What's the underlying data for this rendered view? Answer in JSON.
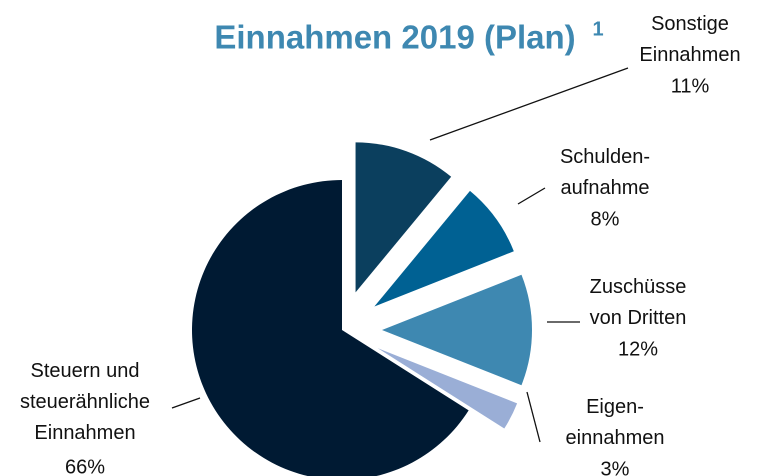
{
  "chart_data": {
    "type": "pie",
    "title": "Einnahmen 2019 (Plan)",
    "title_footnote": "1",
    "categories": [
      "Sonstige\nEinnahmen",
      "Schulden-\naufnahme",
      "Zuschüsse\nvon Dritten",
      "Eigen-\neinnahmen",
      "Steuern und\nsteuerähnliche\nEinnahmen"
    ],
    "values": [
      11,
      8,
      12,
      3,
      66
    ],
    "value_labels": [
      "11%",
      "8%",
      "12%",
      "3%",
      "66%"
    ],
    "colors": [
      "#0b3f5e",
      "#006193",
      "#3e88b1",
      "#9aaed6",
      "#001a33"
    ]
  }
}
